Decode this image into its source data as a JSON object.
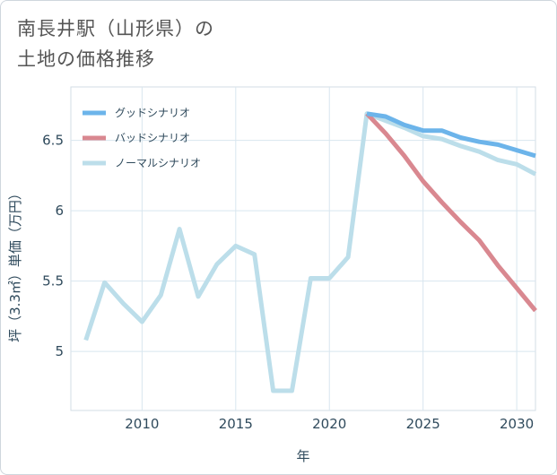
{
  "title_line1": "南長井駅（山形県）の",
  "title_line2": "土地の価格推移",
  "chart_data": {
    "type": "line",
    "xlabel": "年",
    "ylabel": "坪（3.3㎡）単価（万円）",
    "xlim": [
      2006.2,
      2031
    ],
    "ylim": [
      4.58,
      6.88
    ],
    "xticks": [
      2010,
      2015,
      2020,
      2025,
      2030
    ],
    "yticks": [
      5,
      5.5,
      6,
      6.5
    ],
    "grid": true,
    "legend_position": "top-left",
    "series": [
      {
        "name": "グッドシナリオ",
        "color": "#6cb4ea",
        "x": [
          2022,
          2023,
          2024,
          2025,
          2026,
          2027,
          2028,
          2029,
          2030,
          2031
        ],
        "y": [
          6.69,
          6.67,
          6.61,
          6.57,
          6.57,
          6.52,
          6.49,
          6.47,
          6.43,
          6.39
        ]
      },
      {
        "name": "バッドシナリオ",
        "color": "#d98890",
        "x": [
          2022,
          2023,
          2024,
          2025,
          2026,
          2027,
          2028,
          2029,
          2030,
          2031
        ],
        "y": [
          6.69,
          6.55,
          6.39,
          6.21,
          6.06,
          5.92,
          5.79,
          5.61,
          5.45,
          5.29
        ]
      },
      {
        "name": "ノーマルシナリオ",
        "color": "#bcdeea",
        "x": [
          2007,
          2008,
          2009,
          2010,
          2011,
          2012,
          2013,
          2014,
          2015,
          2016,
          2017,
          2018,
          2019,
          2020,
          2021,
          2022,
          2023,
          2024,
          2025,
          2026,
          2027,
          2028,
          2029,
          2030,
          2031
        ],
        "y": [
          5.08,
          5.49,
          5.34,
          5.21,
          5.4,
          5.87,
          5.39,
          5.62,
          5.75,
          5.69,
          4.72,
          4.72,
          5.52,
          5.52,
          5.67,
          6.69,
          6.64,
          6.59,
          6.53,
          6.51,
          6.46,
          6.42,
          6.36,
          6.33,
          6.26
        ]
      }
    ]
  }
}
